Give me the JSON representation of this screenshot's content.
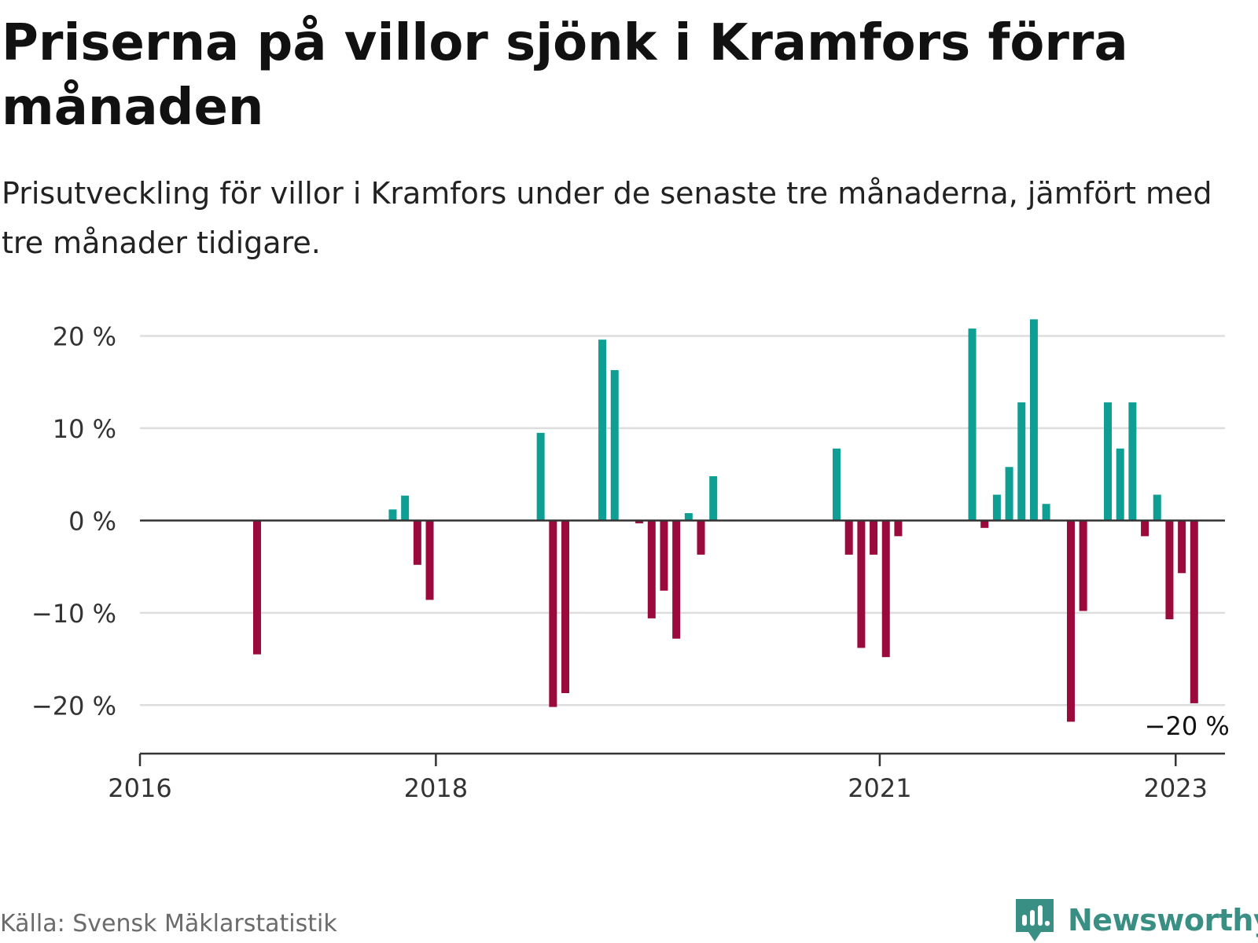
{
  "header": {
    "title": "Priserna på villor sjönk i Kramfors förra månaden",
    "subtitle": "Prisutveckling för villor i Kramfors under de senaste tre månaderna, jämfört med tre månader tidigare."
  },
  "footer": {
    "source": "Källa: Svensk Mäklarstatistik",
    "logo_text": "Newsworthy"
  },
  "colors": {
    "positive": "#0f9e94",
    "negative": "#9b0a3c",
    "grid": "#dddddd",
    "axis": "#333333",
    "logo": "#3a8f85"
  },
  "chart_data": {
    "type": "bar",
    "ylim": [
      -25,
      22
    ],
    "yticks": [
      20,
      10,
      0,
      -10,
      -20
    ],
    "ytick_labels": [
      "20 %",
      "10 %",
      "0 %",
      "−10 %",
      "−20 %"
    ],
    "xticks": [
      {
        "label": "2016",
        "date": "2016-01"
      },
      {
        "label": "2018",
        "date": "2018-01"
      },
      {
        "label": "2021",
        "date": "2021-01"
      },
      {
        "label": "2023",
        "date": "2023-01"
      }
    ],
    "xlim": [
      "2016-01",
      "2023-05"
    ],
    "grid": true,
    "series": [
      {
        "values": [
          {
            "date": "2016-10",
            "value": -14.5
          },
          {
            "date": "2017-09",
            "value": 1.2
          },
          {
            "date": "2017-10",
            "value": 2.7
          },
          {
            "date": "2017-11",
            "value": -4.8
          },
          {
            "date": "2017-12",
            "value": -8.6
          },
          {
            "date": "2018-09",
            "value": 9.5
          },
          {
            "date": "2018-10",
            "value": -20.2
          },
          {
            "date": "2018-11",
            "value": -18.7
          },
          {
            "date": "2019-02",
            "value": 19.6
          },
          {
            "date": "2019-03",
            "value": 16.3
          },
          {
            "date": "2019-05",
            "value": -0.3
          },
          {
            "date": "2019-06",
            "value": -10.6
          },
          {
            "date": "2019-07",
            "value": -7.6
          },
          {
            "date": "2019-08",
            "value": -12.8
          },
          {
            "date": "2019-09",
            "value": 0.8
          },
          {
            "date": "2019-10",
            "value": -3.7
          },
          {
            "date": "2019-11",
            "value": 4.8
          },
          {
            "date": "2020-09",
            "value": 7.8
          },
          {
            "date": "2020-10",
            "value": -3.7
          },
          {
            "date": "2020-11",
            "value": -13.8
          },
          {
            "date": "2020-12",
            "value": -3.7
          },
          {
            "date": "2021-01",
            "value": -14.8
          },
          {
            "date": "2021-02",
            "value": -1.7
          },
          {
            "date": "2021-08",
            "value": 20.8
          },
          {
            "date": "2021-09",
            "value": -0.8
          },
          {
            "date": "2021-10",
            "value": 2.8
          },
          {
            "date": "2021-11",
            "value": 5.8
          },
          {
            "date": "2021-12",
            "value": 12.8
          },
          {
            "date": "2022-01",
            "value": 21.8
          },
          {
            "date": "2022-02",
            "value": 1.8
          },
          {
            "date": "2022-04",
            "value": -21.8
          },
          {
            "date": "2022-05",
            "value": -9.8
          },
          {
            "date": "2022-07",
            "value": 12.8
          },
          {
            "date": "2022-08",
            "value": 7.8
          },
          {
            "date": "2022-09",
            "value": 12.8
          },
          {
            "date": "2022-10",
            "value": -1.7
          },
          {
            "date": "2022-11",
            "value": 2.8
          },
          {
            "date": "2022-12",
            "value": -10.7
          },
          {
            "date": "2023-01",
            "value": -5.7
          },
          {
            "date": "2023-02",
            "value": -19.8
          }
        ]
      }
    ],
    "annotation": {
      "text": "−20 %",
      "date": "2023-02",
      "value": -19.8
    }
  }
}
